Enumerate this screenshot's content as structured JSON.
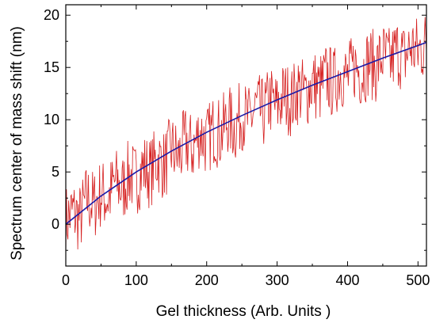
{
  "chart_data": {
    "type": "line",
    "title": "",
    "xlabel": "Gel thickness (Arb. Units )",
    "ylabel": "Spectrum center of mass shift (nm)",
    "xlim": [
      0,
      512
    ],
    "ylim": [
      -4,
      21
    ],
    "x_ticks": [
      0,
      100,
      200,
      300,
      400,
      500
    ],
    "x_tick_labels": [
      "0",
      "100",
      "200",
      "300",
      "400",
      "500"
    ],
    "y_ticks": [
      0,
      5,
      10,
      15,
      20
    ],
    "y_tick_labels": [
      "0",
      "5",
      "10",
      "15",
      "20"
    ],
    "grid": false,
    "legend": "none",
    "series": [
      {
        "color": "#d62020",
        "style": "noisy raw data",
        "x": [
          0,
          10,
          20,
          30,
          40,
          50,
          60,
          70,
          80,
          90,
          100,
          110,
          120,
          130,
          140,
          150,
          160,
          170,
          180,
          190,
          200,
          210,
          220,
          230,
          240,
          250,
          260,
          270,
          280,
          290,
          300,
          310,
          320,
          330,
          340,
          350,
          360,
          370,
          380,
          390,
          400,
          410,
          420,
          430,
          440,
          450,
          460,
          470,
          480,
          490,
          500,
          510
        ],
        "y": [
          0.3,
          1.2,
          0.5,
          2.5,
          1.8,
          3.0,
          2.4,
          4.1,
          3.3,
          4.8,
          4.2,
          5.5,
          4.9,
          6.3,
          5.6,
          7.2,
          6.4,
          7.9,
          7.1,
          8.8,
          7.9,
          9.1,
          8.6,
          10.0,
          9.2,
          10.6,
          9.8,
          11.2,
          10.5,
          11.9,
          11.1,
          12.4,
          11.7,
          13.0,
          12.3,
          13.6,
          12.9,
          14.1,
          13.4,
          14.7,
          13.9,
          15.2,
          14.5,
          15.6,
          15.0,
          16.1,
          15.4,
          16.6,
          15.9,
          17.0,
          16.5,
          17.2
        ],
        "fluctuation": 3.5
      },
      {
        "color": "#1a1aa8",
        "style": "smooth fit",
        "x": [
          0,
          50,
          100,
          150,
          200,
          250,
          300,
          350,
          400,
          450,
          500,
          512
        ],
        "y": [
          0.0,
          2.7,
          5.0,
          7.0,
          8.8,
          10.4,
          11.9,
          13.3,
          14.6,
          15.9,
          17.1,
          17.4
        ]
      }
    ]
  }
}
